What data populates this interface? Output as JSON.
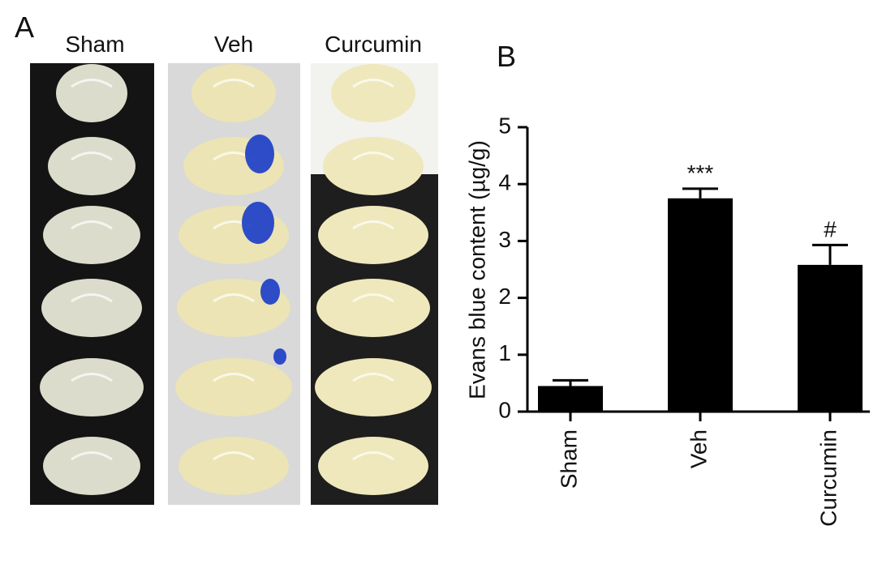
{
  "photo_panel": {
    "label": "A",
    "columns": [
      "Sham",
      "Veh",
      "Curcumin"
    ]
  },
  "chart_data": {
    "type": "bar",
    "panel_label": "B",
    "ylabel": "Evans blue content (µg/g)",
    "categories": [
      "Sham",
      "Veh",
      "Curcumin"
    ],
    "values": [
      0.45,
      3.75,
      2.58
    ],
    "errors": [
      0.1,
      0.17,
      0.35
    ],
    "color": "#000000",
    "ylim": [
      0,
      5
    ],
    "yticks": [
      0,
      1,
      2,
      3,
      4,
      5
    ],
    "annotations": [
      {
        "category": "Veh",
        "text": "***"
      },
      {
        "category": "Curcumin",
        "text": "#"
      }
    ]
  }
}
